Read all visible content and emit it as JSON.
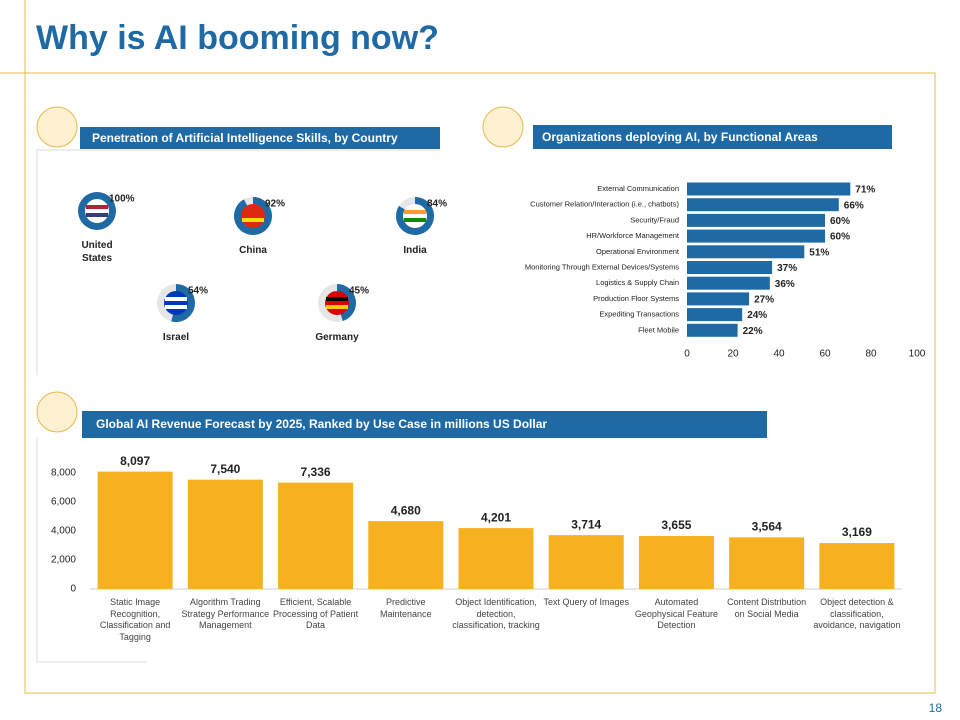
{
  "title": "Why is AI booming now?",
  "page_number": "18",
  "chart_data": [
    {
      "type": "donut",
      "title": "Penetration of Artificial Intelligence Skills, by Country",
      "categories": [
        "United States",
        "China",
        "India",
        "Israel",
        "Germany"
      ],
      "values": [
        100,
        92,
        84,
        54,
        45
      ],
      "value_labels": [
        "100%",
        "92%",
        "84%",
        "54%",
        "45%"
      ],
      "color": "#1f6aa5"
    },
    {
      "type": "hbar",
      "title": "Organizations deploying AI, by Functional Areas",
      "categories": [
        "External Communication",
        "Customer Relation/Interaction (i.e., chatbots)",
        "Security/Fraud",
        "HR/Workforce Management",
        "Operational Environment",
        "Monitoring Through External Devices/Systems",
        "Logistics & Supply Chain",
        "Production Floor Systems",
        "Expediting Transactions",
        "Fleet Mobile"
      ],
      "values": [
        71,
        66,
        60,
        60,
        51,
        37,
        36,
        27,
        24,
        22
      ],
      "value_labels": [
        "71%",
        "66%",
        "60%",
        "60%",
        "51%",
        "37%",
        "36%",
        "27%",
        "24%",
        "22%"
      ],
      "color": "#1f6aa5",
      "xlim": [
        0,
        100
      ],
      "xticks": [
        0,
        20,
        40,
        60,
        80,
        100
      ]
    },
    {
      "type": "bar",
      "title": "Global AI Revenue Forecast by 2025,  Ranked by Use Case in millions US Dollar",
      "categories": [
        "Static Image Recognition, Classification and Tagging",
        "Algorithm Trading Strategy Performance Management",
        "Efficient, Scalable Processing of Patient Data",
        "Predictive Maintenance",
        "Object Identification, detection, classification, tracking",
        "Text Query of Images",
        "Automated Geophysical Feature Detection",
        "Content Distribution on Social Media",
        "Object detection & classification, avoidance, navigation"
      ],
      "values": [
        8097,
        7540,
        7336,
        4680,
        4201,
        3714,
        3655,
        3564,
        3169
      ],
      "value_labels": [
        "8,097",
        "7,540",
        "7,336",
        "4,680",
        "4,201",
        "3,714",
        "3,655",
        "3,564",
        "3,169"
      ],
      "color": "#f5b120",
      "ylim": [
        0,
        9000
      ],
      "yticks": [
        0,
        {
          "value": 2000,
          "label": "2,000"
        },
        {
          "value": 4000,
          "label": "4,000"
        },
        {
          "value": 6000,
          "label": "6,000"
        },
        {
          "value": 8000,
          "label": "8,000"
        }
      ]
    }
  ]
}
